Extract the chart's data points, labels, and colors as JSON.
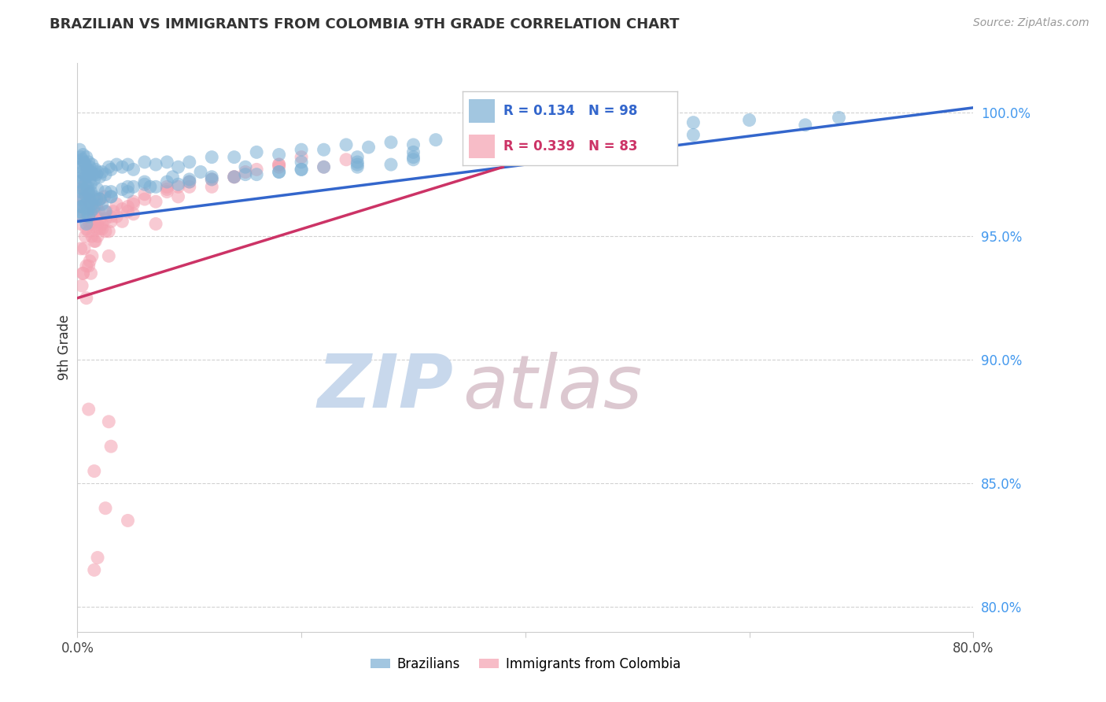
{
  "title": "BRAZILIAN VS IMMIGRANTS FROM COLOMBIA 9TH GRADE CORRELATION CHART",
  "source": "Source: ZipAtlas.com",
  "ylabel": "9th Grade",
  "xlim": [
    0.0,
    80.0
  ],
  "ylim": [
    79.0,
    102.0
  ],
  "x_ticks": [
    0.0,
    20.0,
    40.0,
    60.0,
    80.0
  ],
  "x_tick_labels": [
    "0.0%",
    "",
    "",
    "",
    "80.0%"
  ],
  "y_ticks": [
    80.0,
    85.0,
    90.0,
    95.0,
    100.0
  ],
  "y_tick_labels": [
    "80.0%",
    "85.0%",
    "90.0%",
    "95.0%",
    "100.0%"
  ],
  "blue_color": "#7BAFD4",
  "pink_color": "#F4A0B0",
  "blue_line_color": "#3366CC",
  "pink_line_color": "#CC3366",
  "R_blue": 0.134,
  "N_blue": 98,
  "R_pink": 0.339,
  "N_pink": 83,
  "blue_line_x": [
    0.0,
    80.0
  ],
  "blue_line_y": [
    95.6,
    100.2
  ],
  "pink_line_x": [
    0.0,
    38.0
  ],
  "pink_line_y": [
    92.5,
    97.8
  ],
  "blue_scatter_x": [
    0.1,
    0.15,
    0.2,
    0.2,
    0.25,
    0.3,
    0.3,
    0.4,
    0.4,
    0.5,
    0.5,
    0.6,
    0.6,
    0.7,
    0.7,
    0.8,
    0.8,
    0.9,
    0.9,
    1.0,
    1.0,
    1.0,
    1.1,
    1.1,
    1.2,
    1.2,
    1.3,
    1.4,
    1.5,
    1.6,
    1.7,
    1.8,
    2.0,
    2.2,
    2.5,
    2.8,
    3.0,
    3.5,
    4.0,
    4.5,
    5.0,
    6.0,
    7.0,
    8.0,
    9.0,
    10.0,
    12.0,
    14.0,
    16.0,
    18.0,
    20.0,
    22.0,
    24.0,
    26.0,
    28.0,
    30.0,
    32.0,
    35.0,
    38.0,
    42.0,
    45.0,
    50.0,
    55.0,
    60.0,
    68.0,
    0.2,
    0.3,
    0.4,
    0.5,
    0.6,
    0.7,
    0.8,
    0.9,
    1.0,
    1.1,
    1.2,
    1.3,
    1.5,
    1.8,
    2.0,
    2.5,
    3.0,
    4.0,
    5.0,
    6.0,
    8.0,
    10.0,
    12.0,
    15.0,
    18.0,
    20.0,
    25.0,
    28.0,
    35.0,
    40.0,
    0.15,
    0.25,
    0.35,
    0.5,
    0.7,
    0.9,
    1.1,
    1.4,
    1.7,
    2.2,
    3.0,
    4.5,
    6.5,
    9.0,
    12.0,
    16.0,
    20.0,
    25.0,
    30.0,
    38.0,
    2.5,
    7.0,
    10.0,
    14.0,
    18.0,
    22.0,
    25.0,
    30.0,
    36.0,
    42.0,
    0.8,
    1.0,
    1.2,
    1.5,
    2.0,
    3.0,
    4.5,
    6.0,
    8.5,
    11.0,
    15.0,
    20.0,
    25.0,
    30.0,
    38.0,
    45.0,
    55.0,
    65.0
  ],
  "blue_scatter_y": [
    97.5,
    98.0,
    97.2,
    98.5,
    97.8,
    98.2,
    97.0,
    97.6,
    98.1,
    97.3,
    98.3,
    97.5,
    98.0,
    97.1,
    97.9,
    97.4,
    98.2,
    97.0,
    97.7,
    97.5,
    98.0,
    96.8,
    97.3,
    97.8,
    97.1,
    97.6,
    97.9,
    97.5,
    97.3,
    97.7,
    97.5,
    97.6,
    97.4,
    97.6,
    97.5,
    97.8,
    97.7,
    97.9,
    97.8,
    97.9,
    97.7,
    98.0,
    97.9,
    98.0,
    97.8,
    98.0,
    98.2,
    98.2,
    98.4,
    98.3,
    98.5,
    98.5,
    98.7,
    98.6,
    98.8,
    98.7,
    98.9,
    99.0,
    99.2,
    99.3,
    99.4,
    99.5,
    99.6,
    99.7,
    99.8,
    96.5,
    96.8,
    96.2,
    96.9,
    96.5,
    96.7,
    96.3,
    96.8,
    96.1,
    96.5,
    96.8,
    96.3,
    96.6,
    96.9,
    96.5,
    96.8,
    96.6,
    96.9,
    97.0,
    97.1,
    97.2,
    97.3,
    97.4,
    97.5,
    97.6,
    97.7,
    97.8,
    97.9,
    98.3,
    98.5,
    95.8,
    96.0,
    96.2,
    95.9,
    96.3,
    96.0,
    96.4,
    96.1,
    96.5,
    96.3,
    96.6,
    96.8,
    97.0,
    97.1,
    97.3,
    97.5,
    97.7,
    97.9,
    98.1,
    98.4,
    96.0,
    97.0,
    97.2,
    97.4,
    97.6,
    97.8,
    98.0,
    98.2,
    98.4,
    98.6,
    95.5,
    95.8,
    96.0,
    96.2,
    96.5,
    96.8,
    97.0,
    97.2,
    97.4,
    97.6,
    97.8,
    98.0,
    98.2,
    98.4,
    98.6,
    98.8,
    99.1,
    99.5
  ],
  "pink_scatter_x": [
    0.2,
    0.3,
    0.4,
    0.5,
    0.6,
    0.7,
    0.8,
    0.9,
    1.0,
    1.1,
    1.2,
    1.3,
    1.4,
    1.5,
    1.6,
    1.7,
    1.8,
    1.9,
    2.0,
    2.2,
    2.4,
    2.6,
    2.8,
    3.0,
    3.5,
    4.0,
    4.5,
    5.0,
    6.0,
    7.0,
    8.0,
    9.0,
    10.0,
    12.0,
    14.0,
    16.0,
    18.0,
    20.0,
    22.0,
    24.0,
    0.3,
    0.5,
    0.7,
    0.9,
    1.1,
    1.3,
    1.5,
    1.7,
    2.0,
    2.5,
    3.0,
    4.0,
    5.0,
    7.0,
    9.0,
    12.0,
    15.0,
    18.0,
    0.4,
    0.6,
    0.8,
    1.0,
    1.2,
    1.5,
    1.8,
    2.2,
    2.8,
    3.5,
    4.5,
    6.0,
    8.0,
    10.0,
    14.0,
    18.0,
    0.5,
    0.8,
    1.0,
    1.3,
    1.6,
    2.0,
    2.5,
    3.2,
    5.0,
    8.0
  ],
  "pink_scatter_y": [
    96.2,
    95.5,
    96.5,
    97.0,
    96.0,
    96.8,
    95.3,
    95.8,
    96.7,
    95.5,
    96.3,
    95.0,
    96.0,
    96.5,
    95.7,
    96.2,
    95.5,
    96.0,
    96.5,
    95.3,
    96.6,
    96.0,
    95.2,
    95.8,
    96.3,
    95.6,
    96.2,
    95.9,
    96.7,
    96.4,
    96.9,
    96.6,
    97.2,
    97.0,
    97.4,
    97.7,
    97.9,
    98.2,
    97.8,
    98.1,
    94.5,
    93.5,
    95.0,
    96.5,
    94.0,
    95.5,
    96.0,
    95.3,
    95.7,
    95.2,
    95.6,
    96.1,
    96.3,
    95.5,
    97.0,
    97.3,
    97.6,
    97.9,
    93.0,
    94.5,
    93.8,
    95.2,
    93.5,
    94.8,
    95.0,
    95.5,
    94.2,
    95.8,
    96.0,
    96.5,
    96.8,
    97.0,
    97.4,
    97.8,
    93.5,
    92.5,
    93.8,
    94.2,
    94.8,
    95.3,
    95.7,
    96.0,
    96.4,
    97.0
  ],
  "pink_outlier_x": [
    1.5,
    2.5,
    3.0,
    4.5,
    1.8,
    2.8,
    1.0,
    1.5
  ],
  "pink_outlier_y": [
    85.5,
    84.0,
    86.5,
    83.5,
    82.0,
    87.5,
    88.0,
    81.5
  ],
  "watermark_zip_color": "#C0D0E8",
  "watermark_atlas_color": "#D8C8D0"
}
